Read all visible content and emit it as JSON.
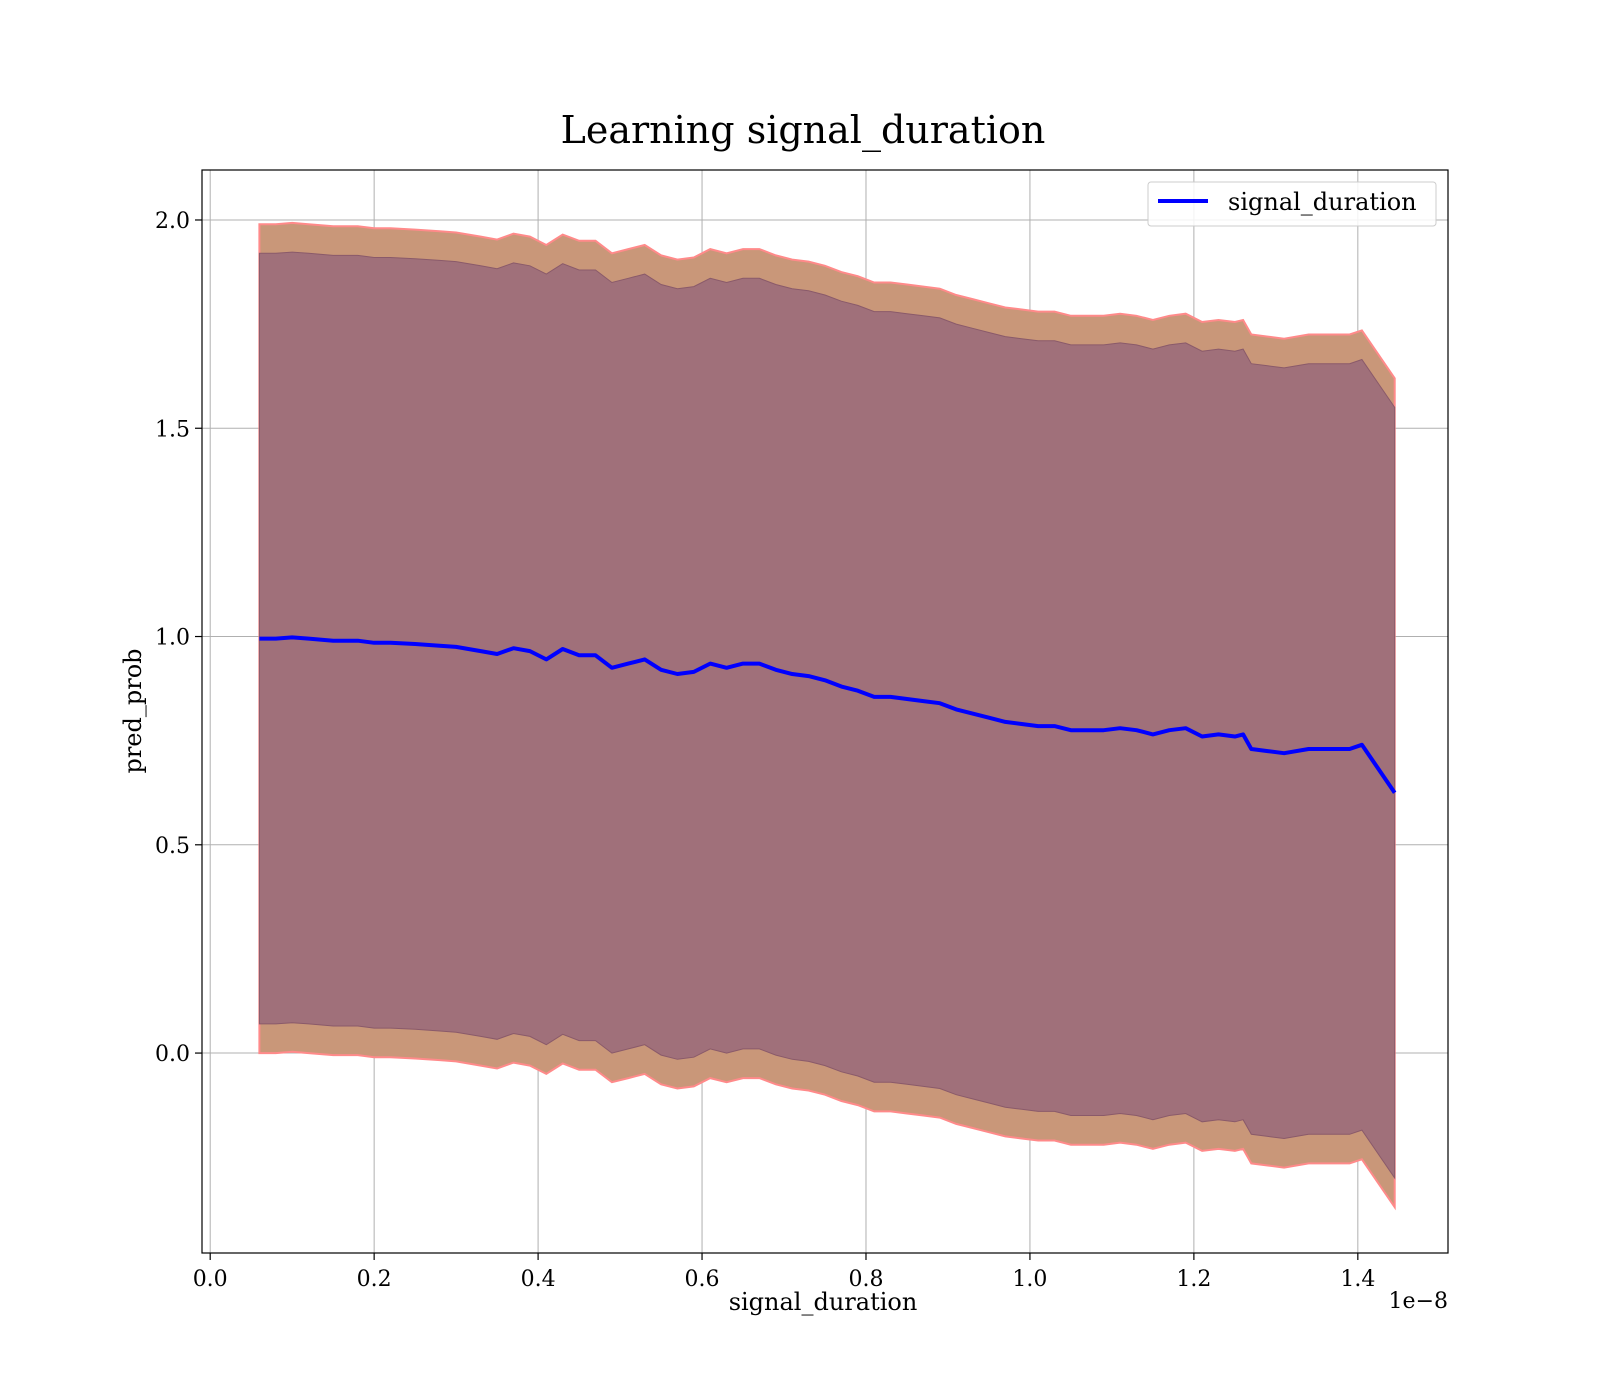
{
  "chart_data": {
    "type": "line",
    "title": "Learning signal_duration",
    "xlabel": "signal_duration",
    "ylabel": "pred_prob",
    "x_offset_text": "1e−8",
    "x_ticks": [
      0.0,
      0.2,
      0.4,
      0.6,
      0.8,
      1.0,
      1.2,
      1.4
    ],
    "x_tick_labels": [
      "0.0",
      "0.2",
      "0.4",
      "0.6",
      "0.8",
      "1.0",
      "1.2",
      "1.4"
    ],
    "y_ticks": [
      0.0,
      0.5,
      1.0,
      1.5,
      2.0
    ],
    "y_tick_labels": [
      "0.0",
      "0.5",
      "1.0",
      "1.5",
      "2.0"
    ],
    "xlim": [
      -1e-10,
      1.51e-08
    ],
    "ylim": [
      -0.48,
      2.12
    ],
    "grid": true,
    "legend_position": "top-right",
    "colors": {
      "line": "#0000ff",
      "outer_band": "#c99779",
      "outer_band_edge": "#ff8a8a",
      "inner_band": "#a0707a"
    },
    "series": [
      {
        "name": "signal_duration",
        "x": [
          6e-10,
          8e-10,
          1e-09,
          1.2e-09,
          1.5e-09,
          1.8e-09,
          2e-09,
          2.2e-09,
          2.5e-09,
          2.8e-09,
          3e-09,
          3.3e-09,
          3.5e-09,
          3.7e-09,
          3.9e-09,
          4.1e-09,
          4.3e-09,
          4.5e-09,
          4.7e-09,
          4.9e-09,
          5.1e-09,
          5.3e-09,
          5.5e-09,
          5.7e-09,
          5.9e-09,
          6.1e-09,
          6.3e-09,
          6.5e-09,
          6.7e-09,
          6.9e-09,
          7.1e-09,
          7.3e-09,
          7.5e-09,
          7.7e-09,
          7.9e-09,
          8.1e-09,
          8.3e-09,
          8.5e-09,
          8.7e-09,
          8.9e-09,
          9.1e-09,
          9.3e-09,
          9.5e-09,
          9.7e-09,
          9.9e-09,
          1.01e-08,
          1.03e-08,
          1.05e-08,
          1.07e-08,
          1.09e-08,
          1.11e-08,
          1.13e-08,
          1.15e-08,
          1.17e-08,
          1.19e-08,
          1.21e-08,
          1.23e-08,
          1.25e-08,
          1.26e-08,
          1.27e-08,
          1.29e-08,
          1.31e-08,
          1.34e-08,
          1.37e-08,
          1.39e-08,
          1.405e-08,
          1.445e-08
        ],
        "y": [
          0.995,
          0.995,
          0.998,
          0.995,
          0.99,
          0.99,
          0.985,
          0.985,
          0.982,
          0.978,
          0.975,
          0.965,
          0.958,
          0.972,
          0.965,
          0.945,
          0.97,
          0.955,
          0.955,
          0.925,
          0.935,
          0.945,
          0.92,
          0.91,
          0.915,
          0.935,
          0.925,
          0.935,
          0.935,
          0.92,
          0.91,
          0.905,
          0.895,
          0.88,
          0.87,
          0.855,
          0.855,
          0.85,
          0.845,
          0.84,
          0.825,
          0.815,
          0.805,
          0.795,
          0.79,
          0.785,
          0.785,
          0.775,
          0.775,
          0.775,
          0.78,
          0.775,
          0.765,
          0.775,
          0.78,
          0.76,
          0.765,
          0.76,
          0.765,
          0.73,
          0.725,
          0.72,
          0.73,
          0.73,
          0.73,
          0.74,
          0.625
        ],
        "band_outer_halfwidth": 0.995,
        "band_inner_halfwidth": 0.925
      }
    ]
  }
}
